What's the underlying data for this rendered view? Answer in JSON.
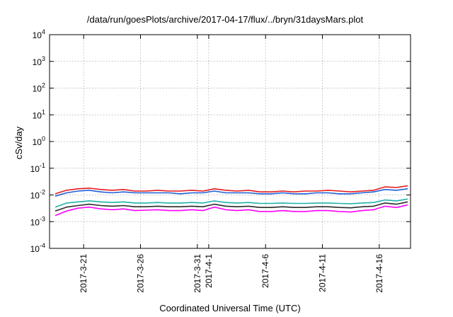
{
  "chart_data": {
    "type": "line",
    "title": "/data/run/goesPlots/archive/2017-04-17/flux/../bryn/31daysMars.plot",
    "xlabel": "Coordinated Universal Time (UTC)",
    "ylabel": "cSv/day",
    "yscale": "log",
    "ylim": [
      0.0001,
      10000
    ],
    "xlim": [
      "2017-03-18T00:00",
      "2017-04-18T18:00"
    ],
    "grid": true,
    "y_ticks": [
      {
        "base": "10",
        "exp": "-4",
        "value": 0.0001
      },
      {
        "base": "10",
        "exp": "-3",
        "value": 0.001
      },
      {
        "base": "10",
        "exp": "-2",
        "value": 0.01
      },
      {
        "base": "10",
        "exp": "-1",
        "value": 0.1
      },
      {
        "base": "10",
        "exp": "0",
        "value": 1
      },
      {
        "base": "10",
        "exp": "1",
        "value": 10
      },
      {
        "base": "10",
        "exp": "2",
        "value": 100
      },
      {
        "base": "10",
        "exp": "3",
        "value": 1000
      },
      {
        "base": "10",
        "exp": "4",
        "value": 10000
      }
    ],
    "x_ticks": [
      {
        "date": "2017-03-21",
        "label": "2017-3-21"
      },
      {
        "date": "2017-03-26",
        "label": "2017-3-26"
      },
      {
        "date": "2017-03-31",
        "label": "2017-3-31"
      },
      {
        "date": "2017-04-01",
        "label": "2017-4-1"
      },
      {
        "date": "2017-04-06",
        "label": "2017-4-6"
      },
      {
        "date": "2017-04-11",
        "label": "2017-4-11"
      },
      {
        "date": "2017-04-16",
        "label": "2017-4-16"
      }
    ],
    "series": [
      {
        "color": "#e41a1c",
        "x": [
          "2017-03-18",
          "2017-03-19",
          "2017-03-20",
          "2017-03-21",
          "2017-03-22",
          "2017-03-23",
          "2017-03-24",
          "2017-03-25",
          "2017-03-26",
          "2017-03-27",
          "2017-03-28",
          "2017-03-29",
          "2017-03-30",
          "2017-03-31",
          "2017-04-01",
          "2017-04-02",
          "2017-04-03",
          "2017-04-04",
          "2017-04-05",
          "2017-04-06",
          "2017-04-07",
          "2017-04-08",
          "2017-04-09",
          "2017-04-10",
          "2017-04-11",
          "2017-04-12",
          "2017-04-13",
          "2017-04-14",
          "2017-04-15",
          "2017-04-16",
          "2017-04-17",
          "2017-04-18"
        ],
        "y": [
          0.011,
          0.015,
          0.017,
          0.018,
          0.016,
          0.015,
          0.016,
          0.014,
          0.014,
          0.015,
          0.014,
          0.014,
          0.015,
          0.014,
          0.017,
          0.015,
          0.014,
          0.015,
          0.013,
          0.013,
          0.014,
          0.013,
          0.014,
          0.014,
          0.015,
          0.014,
          0.013,
          0.014,
          0.015,
          0.02,
          0.019,
          0.022
        ]
      },
      {
        "color": "#1f5fd6",
        "x": [
          "2017-03-18",
          "2017-03-19",
          "2017-03-20",
          "2017-03-21",
          "2017-03-22",
          "2017-03-23",
          "2017-03-24",
          "2017-03-25",
          "2017-03-26",
          "2017-03-27",
          "2017-03-28",
          "2017-03-29",
          "2017-03-30",
          "2017-03-31",
          "2017-04-01",
          "2017-04-02",
          "2017-04-03",
          "2017-04-04",
          "2017-04-05",
          "2017-04-06",
          "2017-04-07",
          "2017-04-08",
          "2017-04-09",
          "2017-04-10",
          "2017-04-11",
          "2017-04-12",
          "2017-04-13",
          "2017-04-14",
          "2017-04-15",
          "2017-04-16",
          "2017-04-17",
          "2017-04-18"
        ],
        "y": [
          0.009,
          0.012,
          0.014,
          0.015,
          0.013,
          0.012,
          0.013,
          0.012,
          0.012,
          0.012,
          0.012,
          0.011,
          0.012,
          0.012,
          0.014,
          0.012,
          0.012,
          0.012,
          0.011,
          0.011,
          0.012,
          0.011,
          0.011,
          0.012,
          0.012,
          0.011,
          0.011,
          0.012,
          0.013,
          0.016,
          0.015,
          0.017
        ]
      },
      {
        "color": "#20b2aa",
        "x": [
          "2017-03-18",
          "2017-03-19",
          "2017-03-20",
          "2017-03-21",
          "2017-03-22",
          "2017-03-23",
          "2017-03-24",
          "2017-03-25",
          "2017-03-26",
          "2017-03-27",
          "2017-03-28",
          "2017-03-29",
          "2017-03-30",
          "2017-03-31",
          "2017-04-01",
          "2017-04-02",
          "2017-04-03",
          "2017-04-04",
          "2017-04-05",
          "2017-04-06",
          "2017-04-07",
          "2017-04-08",
          "2017-04-09",
          "2017-04-10",
          "2017-04-11",
          "2017-04-12",
          "2017-04-13",
          "2017-04-14",
          "2017-04-15",
          "2017-04-16",
          "2017-04-17",
          "2017-04-18"
        ],
        "y": [
          0.0035,
          0.005,
          0.0055,
          0.006,
          0.0055,
          0.0052,
          0.0055,
          0.005,
          0.005,
          0.0052,
          0.005,
          0.005,
          0.0052,
          0.005,
          0.006,
          0.0052,
          0.005,
          0.0052,
          0.0048,
          0.0048,
          0.005,
          0.0048,
          0.0048,
          0.005,
          0.005,
          0.0048,
          0.0047,
          0.005,
          0.0052,
          0.0065,
          0.006,
          0.007
        ]
      },
      {
        "color": "#2a2a2a",
        "x": [
          "2017-03-18",
          "2017-03-19",
          "2017-03-20",
          "2017-03-21",
          "2017-03-22",
          "2017-03-23",
          "2017-03-24",
          "2017-03-25",
          "2017-03-26",
          "2017-03-27",
          "2017-03-28",
          "2017-03-29",
          "2017-03-30",
          "2017-03-31",
          "2017-04-01",
          "2017-04-02",
          "2017-04-03",
          "2017-04-04",
          "2017-04-05",
          "2017-04-06",
          "2017-04-07",
          "2017-04-08",
          "2017-04-09",
          "2017-04-10",
          "2017-04-11",
          "2017-04-12",
          "2017-04-13",
          "2017-04-14",
          "2017-04-15",
          "2017-04-16",
          "2017-04-17",
          "2017-04-18"
        ],
        "y": [
          0.0025,
          0.0035,
          0.004,
          0.0045,
          0.004,
          0.0038,
          0.004,
          0.0036,
          0.0036,
          0.0038,
          0.0036,
          0.0036,
          0.0038,
          0.0036,
          0.0045,
          0.0038,
          0.0036,
          0.0038,
          0.0034,
          0.0034,
          0.0036,
          0.0034,
          0.0034,
          0.0036,
          0.0036,
          0.0034,
          0.0033,
          0.0036,
          0.0038,
          0.005,
          0.0045,
          0.0055
        ]
      },
      {
        "color": "#ff00ff",
        "x": [
          "2017-03-18",
          "2017-03-19",
          "2017-03-20",
          "2017-03-21",
          "2017-03-22",
          "2017-03-23",
          "2017-03-24",
          "2017-03-25",
          "2017-03-26",
          "2017-03-27",
          "2017-03-28",
          "2017-03-29",
          "2017-03-30",
          "2017-03-31",
          "2017-04-01",
          "2017-04-02",
          "2017-04-03",
          "2017-04-04",
          "2017-04-05",
          "2017-04-06",
          "2017-04-07",
          "2017-04-08",
          "2017-04-09",
          "2017-04-10",
          "2017-04-11",
          "2017-04-12",
          "2017-04-13",
          "2017-04-14",
          "2017-04-15",
          "2017-04-16",
          "2017-04-17",
          "2017-04-18"
        ],
        "y": [
          0.0017,
          0.0025,
          0.0032,
          0.0035,
          0.003,
          0.0028,
          0.003,
          0.0026,
          0.0027,
          0.0028,
          0.0026,
          0.0026,
          0.0028,
          0.0026,
          0.0035,
          0.0028,
          0.0026,
          0.0028,
          0.0024,
          0.0024,
          0.0026,
          0.0024,
          0.0024,
          0.0026,
          0.0026,
          0.0024,
          0.0023,
          0.0026,
          0.0028,
          0.0038,
          0.0034,
          0.0042
        ]
      }
    ]
  }
}
